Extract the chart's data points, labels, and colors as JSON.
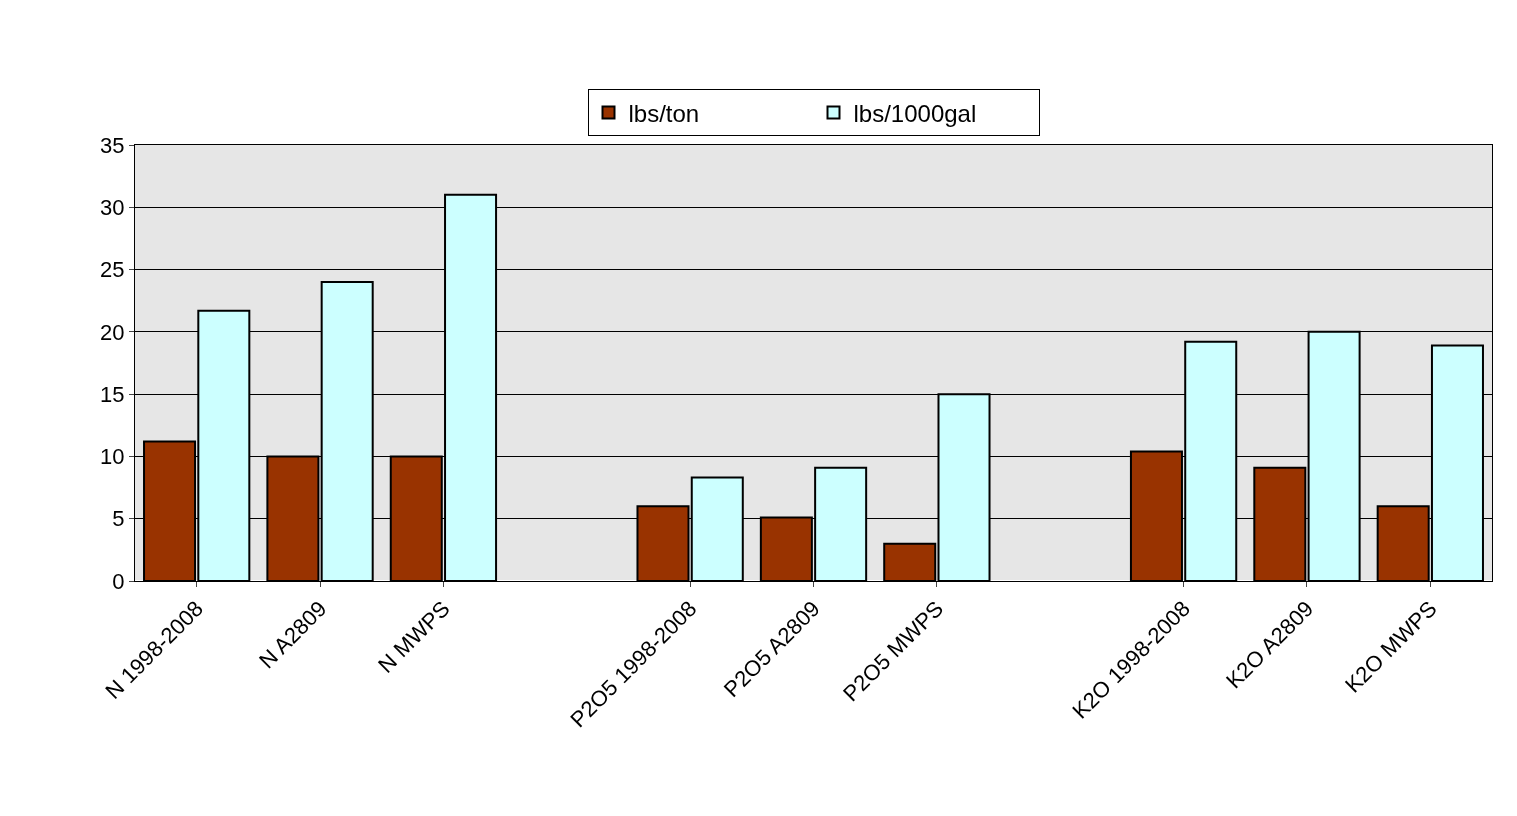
{
  "chart_data": {
    "type": "bar",
    "categories": [
      "N 1998-2008",
      "N A2809",
      "N MWPS",
      null,
      "P2O5 1998-2008",
      "P2O5 A2809",
      "P2O5 MWPS",
      null,
      "K2O 1998-2008",
      "K2O A2809",
      "K2O MWPS"
    ],
    "series": [
      {
        "name": "lbs/ton",
        "color": "#993300",
        "values": [
          11.2,
          10,
          10,
          null,
          6,
          5.1,
          3,
          null,
          10.4,
          9.1,
          6
        ]
      },
      {
        "name": "lbs/1000gal",
        "color": "#ccffff",
        "values": [
          21.7,
          24,
          31,
          null,
          8.3,
          9.1,
          15,
          null,
          19.2,
          20,
          18.9
        ]
      }
    ],
    "ylim": [
      0,
      35
    ],
    "yticks": [
      0,
      5,
      10,
      15,
      20,
      25,
      30,
      35
    ],
    "grid": "y",
    "legend": "top"
  }
}
